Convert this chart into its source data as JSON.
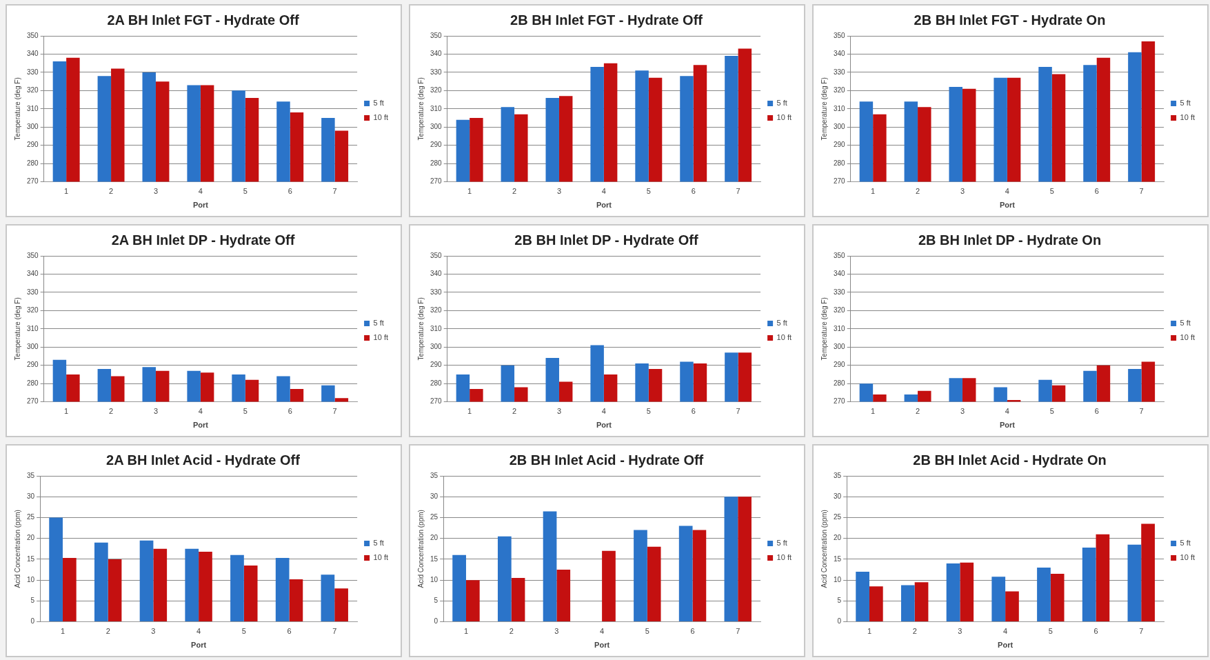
{
  "chart_data": [
    {
      "type": "bar",
      "title": "2A BH Inlet FGT - Hydrate Off",
      "xlabel": "Port",
      "ylabel": "Temperature (deg F)",
      "categories": [
        "1",
        "2",
        "3",
        "4",
        "5",
        "6",
        "7"
      ],
      "series": [
        {
          "name": "5 ft",
          "color": "#2b74c9",
          "values": [
            336,
            328,
            330,
            323,
            320,
            314,
            305
          ]
        },
        {
          "name": "10 ft",
          "color": "#c41010",
          "values": [
            338,
            332,
            325,
            323,
            316,
            308,
            298
          ]
        }
      ],
      "ylim": [
        270,
        350
      ],
      "yticks": [
        270,
        280,
        290,
        300,
        310,
        320,
        330,
        340,
        350
      ],
      "grid": "y",
      "legend": "right"
    },
    {
      "type": "bar",
      "title": "2B BH Inlet FGT - Hydrate Off",
      "xlabel": "Port",
      "ylabel": "Temperature (deg F)",
      "categories": [
        "1",
        "2",
        "3",
        "4",
        "5",
        "6",
        "7"
      ],
      "series": [
        {
          "name": "5 ft",
          "color": "#2b74c9",
          "values": [
            304,
            311,
            316,
            333,
            331,
            328,
            339
          ]
        },
        {
          "name": "10 ft",
          "color": "#c41010",
          "values": [
            305,
            307,
            317,
            335,
            327,
            334,
            343
          ]
        }
      ],
      "ylim": [
        270,
        350
      ],
      "yticks": [
        270,
        280,
        290,
        300,
        310,
        320,
        330,
        340,
        350
      ],
      "grid": "y",
      "legend": "right"
    },
    {
      "type": "bar",
      "title": "2B BH Inlet FGT - Hydrate On",
      "xlabel": "Port",
      "ylabel": "Temperature (deg F)",
      "categories": [
        "1",
        "2",
        "3",
        "4",
        "5",
        "6",
        "7"
      ],
      "series": [
        {
          "name": "5 ft",
          "color": "#2b74c9",
          "values": [
            314,
            314,
            322,
            327,
            333,
            334,
            341
          ]
        },
        {
          "name": "10 ft",
          "color": "#c41010",
          "values": [
            307,
            311,
            321,
            327,
            329,
            338,
            347
          ]
        }
      ],
      "ylim": [
        270,
        350
      ],
      "yticks": [
        270,
        280,
        290,
        300,
        310,
        320,
        330,
        340,
        350
      ],
      "grid": "y",
      "legend": "right"
    },
    {
      "type": "bar",
      "title": "2A BH Inlet DP - Hydrate Off",
      "xlabel": "Port",
      "ylabel": "Temperature (deg F)",
      "categories": [
        "1",
        "2",
        "3",
        "4",
        "5",
        "6",
        "7"
      ],
      "series": [
        {
          "name": "5 ft",
          "color": "#2b74c9",
          "values": [
            293,
            288,
            289,
            287,
            285,
            284,
            279
          ]
        },
        {
          "name": "10 ft",
          "color": "#c41010",
          "values": [
            285,
            284,
            287,
            286,
            282,
            277,
            272
          ]
        }
      ],
      "ylim": [
        270,
        350
      ],
      "yticks": [
        270,
        280,
        290,
        300,
        310,
        320,
        330,
        340,
        350
      ],
      "grid": "y",
      "legend": "right"
    },
    {
      "type": "bar",
      "title": "2B BH Inlet DP - Hydrate Off",
      "xlabel": "Port",
      "ylabel": "Temperature (deg F)",
      "categories": [
        "1",
        "2",
        "3",
        "4",
        "5",
        "6",
        "7"
      ],
      "series": [
        {
          "name": "5 ft",
          "color": "#2b74c9",
          "values": [
            285,
            290,
            294,
            301,
            291,
            292,
            297
          ]
        },
        {
          "name": "10 ft",
          "color": "#c41010",
          "values": [
            277,
            278,
            281,
            285,
            288,
            291,
            297
          ]
        }
      ],
      "ylim": [
        270,
        350
      ],
      "yticks": [
        270,
        280,
        290,
        300,
        310,
        320,
        330,
        340,
        350
      ],
      "grid": "y",
      "legend": "right"
    },
    {
      "type": "bar",
      "title": "2B BH Inlet DP - Hydrate On",
      "xlabel": "Port",
      "ylabel": "Temperature (deg F)",
      "categories": [
        "1",
        "2",
        "3",
        "4",
        "5",
        "6",
        "7"
      ],
      "series": [
        {
          "name": "5 ft",
          "color": "#2b74c9",
          "values": [
            280,
            274,
            283,
            278,
            282,
            287,
            288
          ]
        },
        {
          "name": "10 ft",
          "color": "#c41010",
          "values": [
            274,
            276,
            283,
            271,
            279,
            290,
            292
          ]
        }
      ],
      "ylim": [
        270,
        350
      ],
      "yticks": [
        270,
        280,
        290,
        300,
        310,
        320,
        330,
        340,
        350
      ],
      "grid": "y",
      "legend": "right"
    },
    {
      "type": "bar",
      "title": "2A BH Inlet Acid - Hydrate Off",
      "xlabel": "Port",
      "ylabel": "Acid Concentration (ppm)",
      "categories": [
        "1",
        "2",
        "3",
        "4",
        "5",
        "6",
        "7"
      ],
      "series": [
        {
          "name": "5 ft",
          "color": "#2b74c9",
          "values": [
            25,
            19,
            19.5,
            17.5,
            16,
            15.3,
            11.3
          ]
        },
        {
          "name": "10 ft",
          "color": "#c41010",
          "values": [
            15.3,
            15,
            17.5,
            16.8,
            13.5,
            10.2,
            8
          ]
        }
      ],
      "ylim": [
        0,
        35
      ],
      "yticks": [
        0,
        5,
        10,
        15,
        20,
        25,
        30,
        35
      ],
      "grid": "y",
      "legend": "right"
    },
    {
      "type": "bar",
      "title": "2B BH Inlet Acid - Hydrate Off",
      "xlabel": "Port",
      "ylabel": "Acid Concentration (ppm)",
      "categories": [
        "1",
        "2",
        "3",
        "4",
        "5",
        "6",
        "7"
      ],
      "series": [
        {
          "name": "5 ft",
          "color": "#2b74c9",
          "values": [
            16,
            20.5,
            26.5,
            null,
            22,
            23,
            30
          ]
        },
        {
          "name": "10 ft",
          "color": "#c41010",
          "values": [
            10,
            10.5,
            12.5,
            17,
            18,
            22,
            30
          ]
        }
      ],
      "ylim": [
        0,
        35
      ],
      "yticks": [
        0,
        5,
        10,
        15,
        20,
        25,
        30,
        35
      ],
      "grid": "y",
      "legend": "right"
    },
    {
      "type": "bar",
      "title": "2B BH Inlet Acid - Hydrate On",
      "xlabel": "Port",
      "ylabel": "Acid Concentration (ppm)",
      "categories": [
        "1",
        "2",
        "3",
        "4",
        "5",
        "6",
        "7"
      ],
      "series": [
        {
          "name": "5 ft",
          "color": "#2b74c9",
          "values": [
            12,
            8.8,
            14,
            10.8,
            13,
            17.8,
            18.5
          ]
        },
        {
          "name": "10 ft",
          "color": "#c41010",
          "values": [
            8.5,
            9.5,
            14.2,
            7.3,
            11.5,
            21,
            23.5
          ]
        }
      ],
      "ylim": [
        0,
        35
      ],
      "yticks": [
        0,
        5,
        10,
        15,
        20,
        25,
        30,
        35
      ],
      "grid": "y",
      "legend": "right"
    }
  ]
}
